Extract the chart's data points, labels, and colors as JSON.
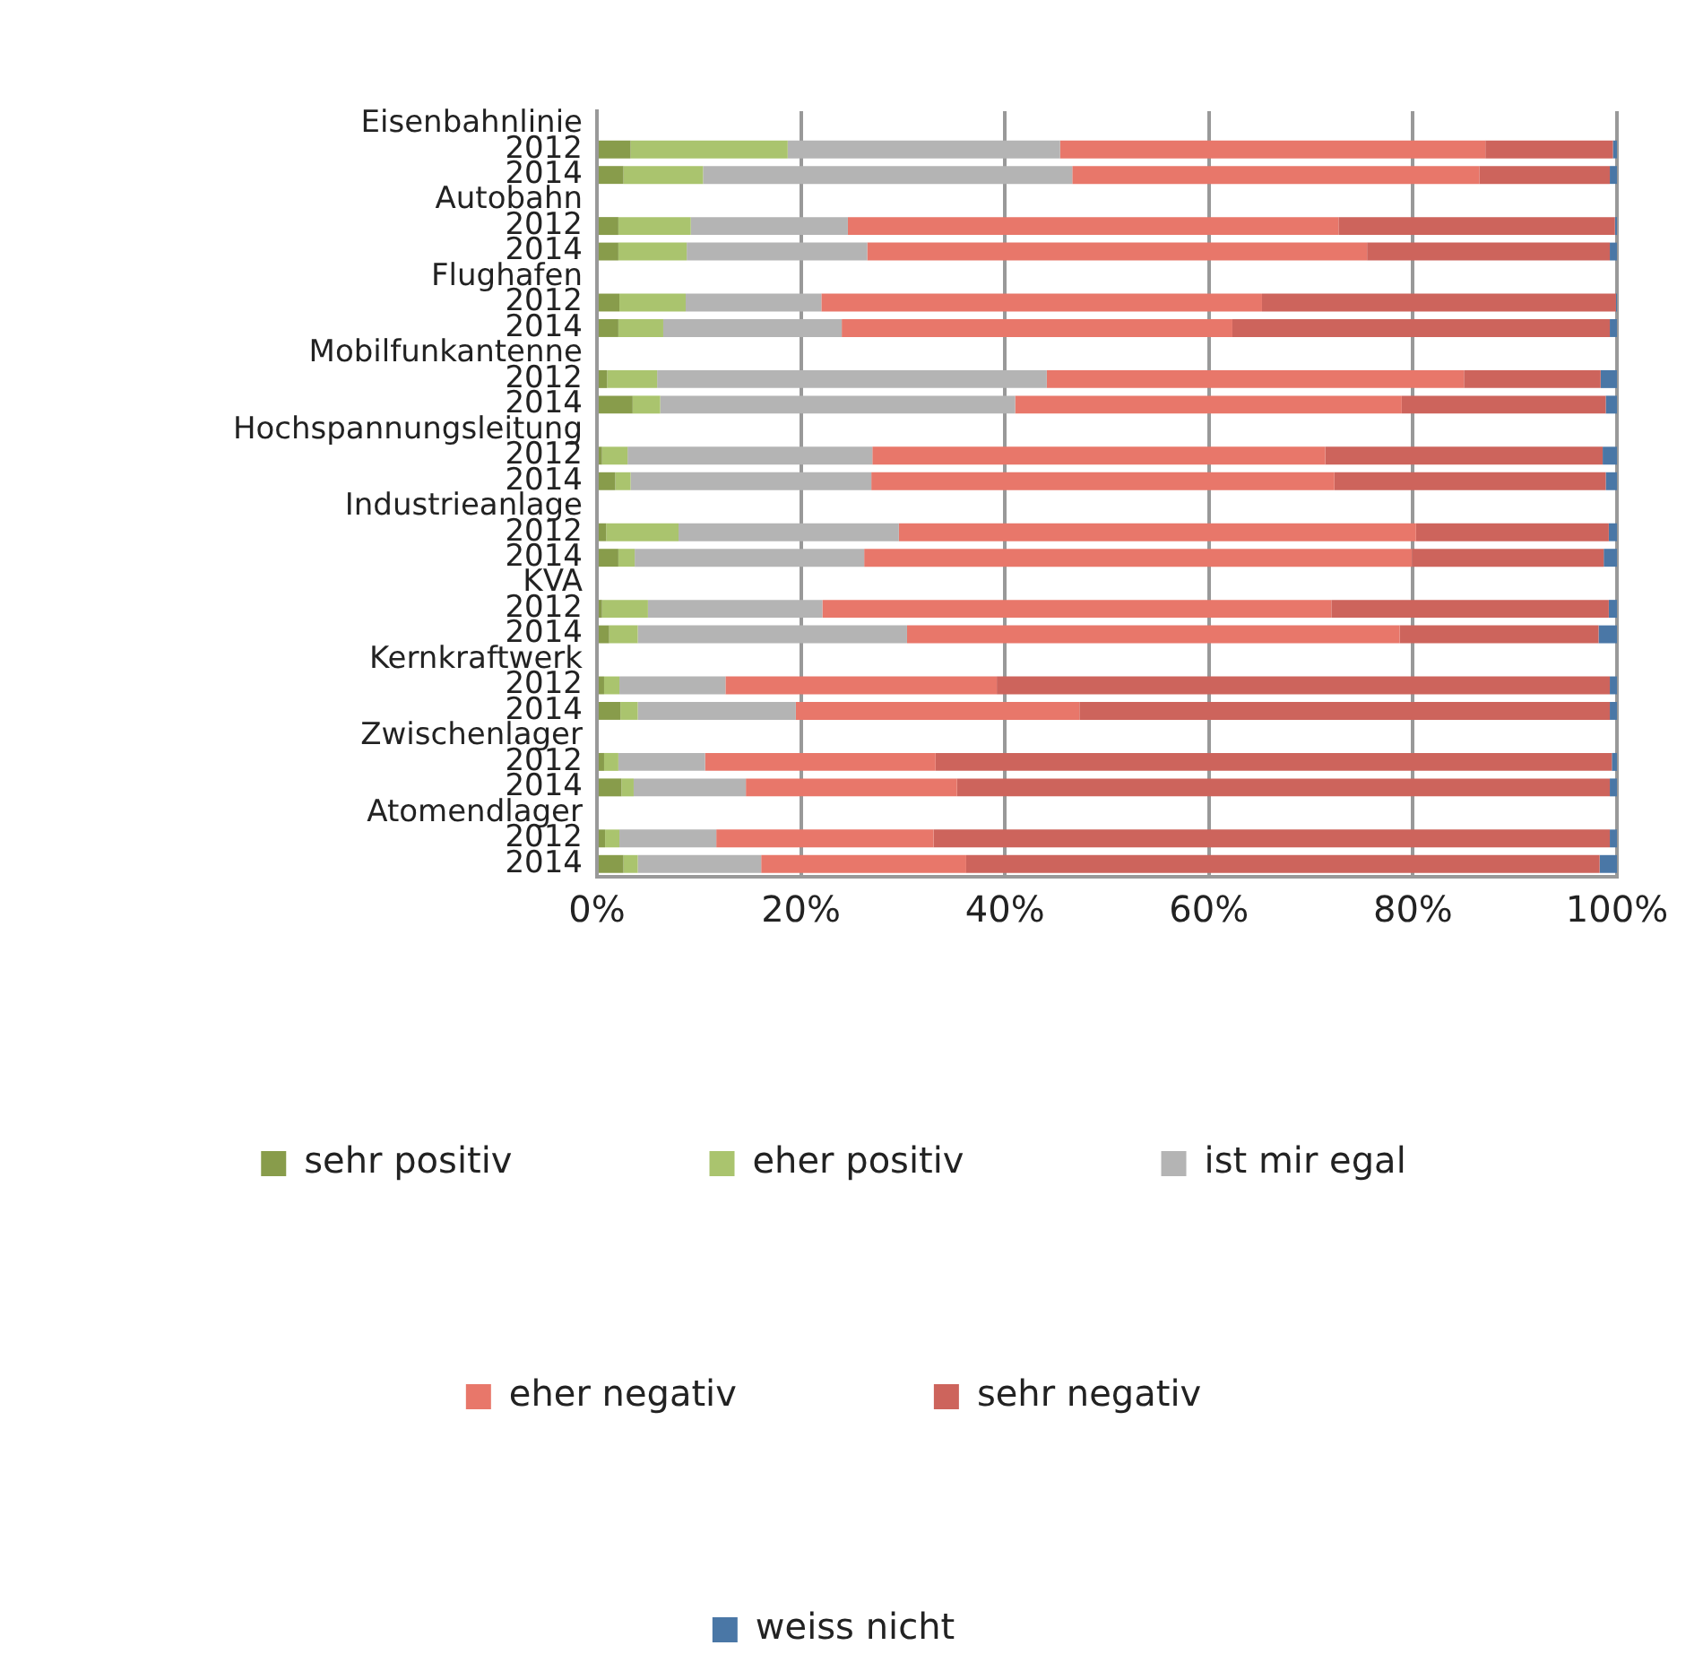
{
  "chart_data": {
    "type": "bar",
    "orientation": "horizontal",
    "stacked": true,
    "categories": [
      "Eisenbahnlinie",
      "2012",
      "2014",
      "Autobahn",
      "2012",
      "2014",
      "Flughafen",
      "2012",
      "2014",
      "Mobilfunkantenne",
      "2012",
      "2014",
      "Hochspannungsleitung",
      "2012",
      "2014",
      "Industrieanlage",
      "2012",
      "2014",
      "KVA",
      "2012",
      "2014",
      "Kernkraftwerk",
      "2012",
      "2014",
      "Zwischenlager",
      "2012",
      "2014",
      "Atomendlager",
      "2012",
      "2014"
    ],
    "series": [
      {
        "name": "sehr positiv",
        "color": "#889c4b",
        "values": [
          null,
          3.3,
          2.6,
          null,
          2.1,
          2.1,
          null,
          2.2,
          2.1,
          null,
          1.0,
          3.5,
          null,
          0.5,
          1.8,
          null,
          0.9,
          2.1,
          null,
          0.5,
          1.2,
          null,
          0.7,
          2.3,
          null,
          0.7,
          2.4,
          null,
          0.8,
          2.6
        ]
      },
      {
        "name": "eher positiv",
        "color": "#aac46e",
        "values": [
          null,
          15.4,
          7.8,
          null,
          7.1,
          6.7,
          null,
          6.5,
          4.4,
          null,
          4.9,
          2.7,
          null,
          2.5,
          1.5,
          null,
          7.1,
          1.6,
          null,
          4.5,
          2.8,
          null,
          1.5,
          1.7,
          null,
          1.4,
          1.2,
          null,
          1.4,
          1.4
        ]
      },
      {
        "name": "ist mir egal",
        "color": "#b4b4b4",
        "values": [
          null,
          26.7,
          36.2,
          null,
          15.4,
          17.7,
          null,
          13.3,
          17.5,
          null,
          38.2,
          34.8,
          null,
          24.0,
          23.6,
          null,
          21.6,
          22.5,
          null,
          17.1,
          26.4,
          null,
          10.4,
          15.5,
          null,
          8.5,
          11.0,
          null,
          9.5,
          12.1
        ]
      },
      {
        "name": "eher negativ",
        "color": "#e8776a",
        "values": [
          null,
          41.7,
          39.9,
          null,
          48.1,
          49.0,
          null,
          43.2,
          38.3,
          null,
          40.9,
          37.9,
          null,
          44.4,
          45.4,
          null,
          50.7,
          53.7,
          null,
          49.9,
          48.3,
          null,
          26.6,
          27.8,
          null,
          22.6,
          20.7,
          null,
          21.3,
          20.1
        ]
      },
      {
        "name": "sehr negativ",
        "color": "#cd645c",
        "values": [
          null,
          12.5,
          12.8,
          null,
          27.1,
          23.8,
          null,
          34.7,
          37.0,
          null,
          13.4,
          20.0,
          null,
          27.2,
          26.6,
          null,
          18.9,
          18.8,
          null,
          27.2,
          19.5,
          null,
          60.1,
          52.0,
          null,
          66.3,
          64.0,
          null,
          66.3,
          62.1
        ]
      },
      {
        "name": "weiss nicht",
        "color": "#4a77a6",
        "values": [
          null,
          0.4,
          0.7,
          null,
          0.2,
          0.7,
          null,
          0.1,
          0.7,
          null,
          1.6,
          1.1,
          null,
          1.4,
          1.1,
          null,
          0.8,
          1.3,
          null,
          0.8,
          1.8,
          null,
          0.7,
          0.7,
          null,
          0.5,
          0.7,
          null,
          0.7,
          1.7
        ]
      }
    ],
    "xlim": [
      0,
      100
    ],
    "xticks": [
      {
        "value": 0,
        "label": "0%"
      },
      {
        "value": 20,
        "label": "20%"
      },
      {
        "value": 40,
        "label": "40%"
      },
      {
        "value": 60,
        "label": "60%"
      },
      {
        "value": 80,
        "label": "80%"
      },
      {
        "value": 100,
        "label": "100%"
      }
    ],
    "grid": "x",
    "legend": "bottom"
  }
}
